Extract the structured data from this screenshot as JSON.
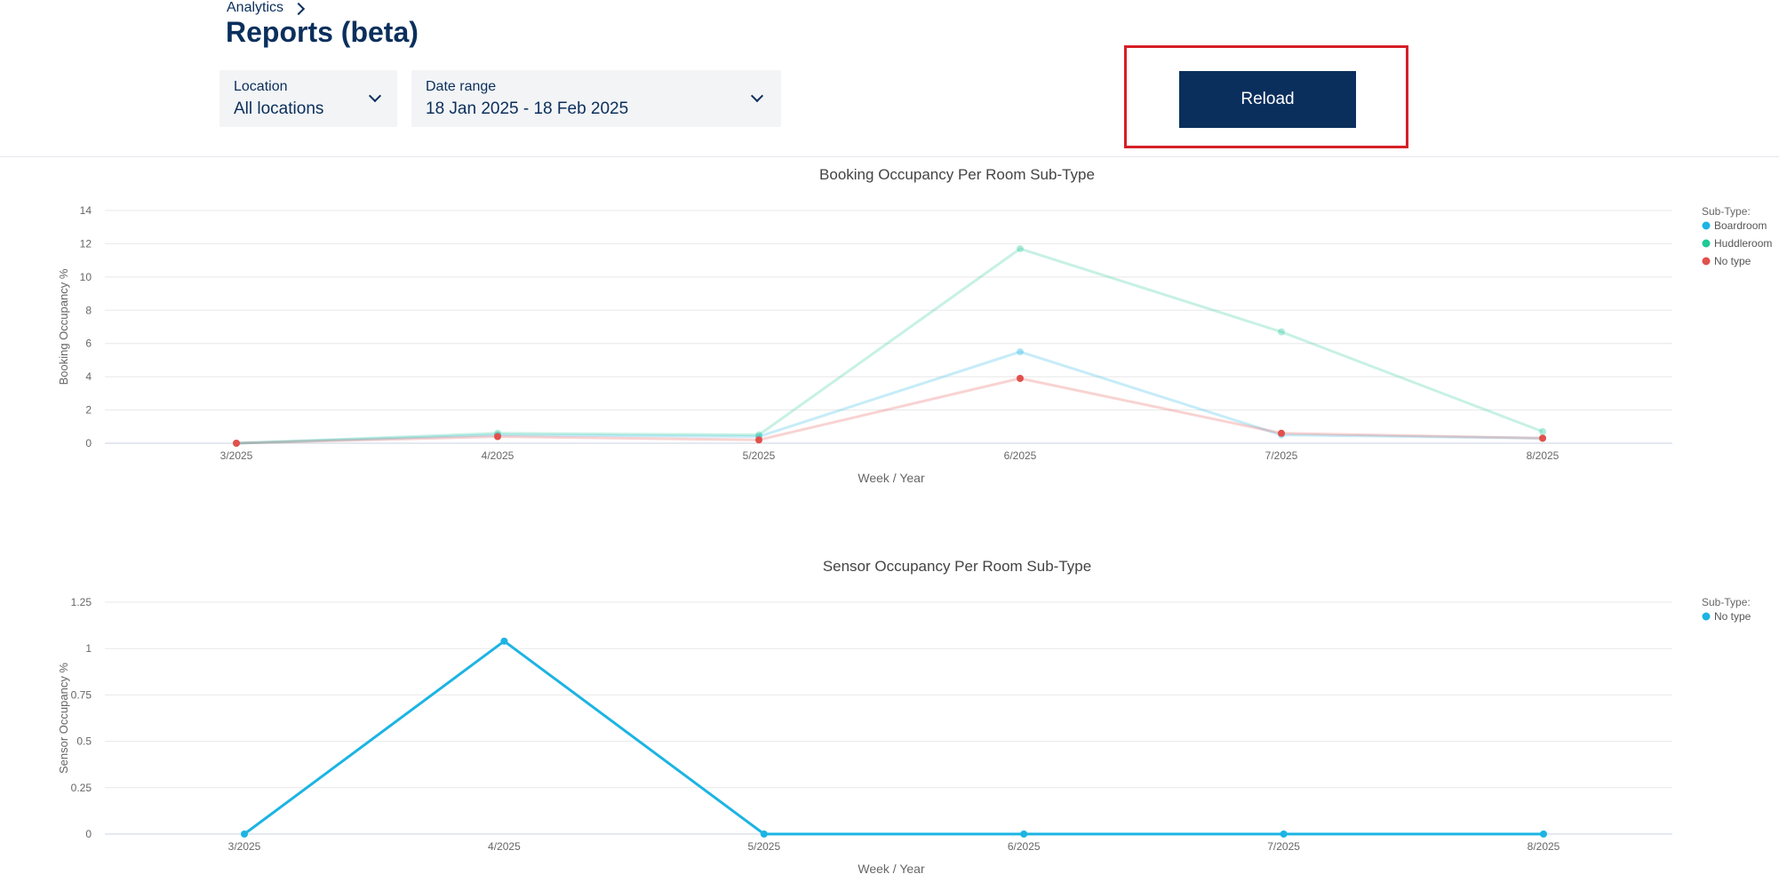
{
  "breadcrumb": {
    "label": "Analytics"
  },
  "page": {
    "title": "Reports (beta)"
  },
  "filters": {
    "location": {
      "label": "Location",
      "value": "All locations"
    },
    "date_range": {
      "label": "Date range",
      "value": "18 Jan 2025 - 18 Feb 2025"
    }
  },
  "toolbar": {
    "reload_label": "Reload"
  },
  "colors": {
    "navy": "#0a2f5c",
    "highlight": "#d51f26",
    "boardroom": "#1cb4e3",
    "huddleroom": "#20c997",
    "no_type": "#e2504c"
  },
  "chart_data": [
    {
      "type": "line",
      "title": "Booking Occupancy Per Room Sub-Type",
      "xlabel": "Week / Year",
      "ylabel": "Booking Occupancy %",
      "x": [
        "3/2025",
        "4/2025",
        "5/2025",
        "6/2025",
        "7/2025",
        "8/2025"
      ],
      "ylim": [
        0,
        14
      ],
      "yticks": [
        "0",
        "2",
        "4",
        "6",
        "8",
        "10",
        "12",
        "14"
      ],
      "grid": true,
      "legend_title": "Sub-Type:",
      "legend_position": "right",
      "highlighted_series": "No type",
      "series": [
        {
          "name": "Boardroom",
          "color": "#1cb4e3",
          "values": [
            0,
            0.5,
            0.4,
            5.5,
            0.5,
            0.3
          ]
        },
        {
          "name": "Huddleroom",
          "color": "#20c997",
          "values": [
            0,
            0.6,
            0.5,
            11.7,
            6.7,
            0.7
          ]
        },
        {
          "name": "No type",
          "color": "#e2504c",
          "values": [
            0,
            0.4,
            0.2,
            3.9,
            0.6,
            0.3
          ]
        }
      ]
    },
    {
      "type": "line",
      "title": "Sensor Occupancy Per Room Sub-Type",
      "xlabel": "Week / Year",
      "ylabel": "Sensor Occupancy %",
      "x": [
        "3/2025",
        "4/2025",
        "5/2025",
        "6/2025",
        "7/2025",
        "8/2025"
      ],
      "ylim": [
        0,
        1.25
      ],
      "yticks": [
        "0",
        "0.25",
        "0.5",
        "0.75",
        "1",
        "1.25"
      ],
      "grid": true,
      "legend_title": "Sub-Type:",
      "legend_position": "right",
      "series": [
        {
          "name": "No type",
          "color": "#1cb4e3",
          "values": [
            0,
            1.04,
            0,
            0,
            0,
            0
          ]
        }
      ]
    }
  ]
}
